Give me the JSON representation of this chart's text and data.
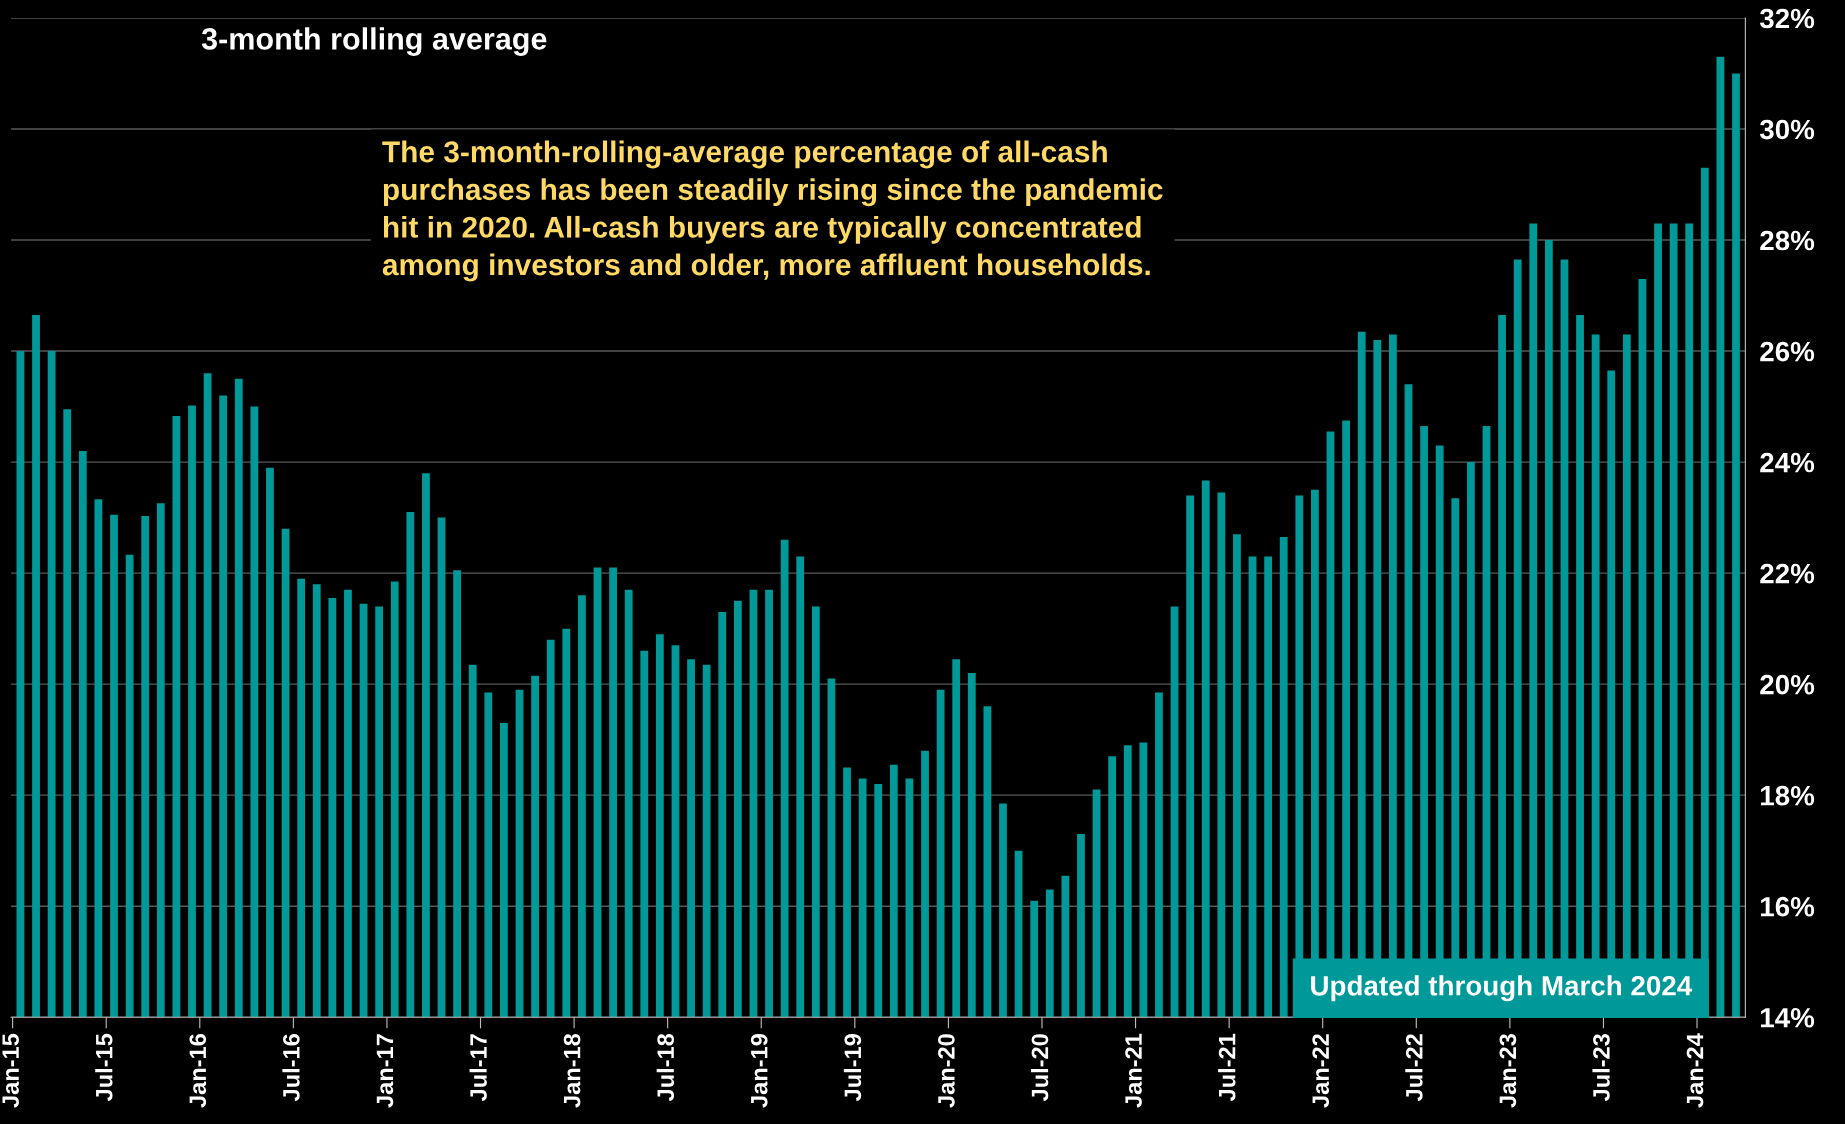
{
  "chart_data": {
    "type": "bar",
    "title": "3-month rolling average",
    "categories": [
      "Jan-15",
      null,
      null,
      null,
      null,
      null,
      "Jul-15",
      null,
      null,
      null,
      null,
      null,
      "Jan-16",
      null,
      null,
      null,
      null,
      null,
      "Jul-16",
      null,
      null,
      null,
      null,
      null,
      "Jan-17",
      null,
      null,
      null,
      null,
      null,
      "Jul-17",
      null,
      null,
      null,
      null,
      null,
      "Jan-18",
      null,
      null,
      null,
      null,
      null,
      "Jul-18",
      null,
      null,
      null,
      null,
      null,
      "Jan-19",
      null,
      null,
      null,
      null,
      null,
      "Jul-19",
      null,
      null,
      null,
      null,
      null,
      "Jan-20",
      null,
      null,
      null,
      null,
      null,
      "Jul-20",
      null,
      null,
      null,
      null,
      null,
      "Jan-21",
      null,
      null,
      null,
      null,
      null,
      "Jul-21",
      null,
      null,
      null,
      null,
      null,
      "Jan-22",
      null,
      null,
      null,
      null,
      null,
      "Jul-22",
      null,
      null,
      null,
      null,
      null,
      "Jan-23",
      null,
      null,
      null,
      null,
      null,
      "Jul-23",
      null,
      null,
      null,
      null,
      null,
      "Jan-24",
      null,
      null
    ],
    "values": [
      26.0,
      26.65,
      26.0,
      24.95,
      24.2,
      23.33,
      23.05,
      22.33,
      23.03,
      23.26,
      24.83,
      25.02,
      25.6,
      25.2,
      25.5,
      25.0,
      23.9,
      22.8,
      21.9,
      21.8,
      21.55,
      21.7,
      21.45,
      21.4,
      21.85,
      23.1,
      23.8,
      23.0,
      22.05,
      20.35,
      19.85,
      19.3,
      19.9,
      20.15,
      20.8,
      21.0,
      21.6,
      22.1,
      22.1,
      21.7,
      20.6,
      20.9,
      20.7,
      20.45,
      20.35,
      21.3,
      21.5,
      21.7,
      21.7,
      22.6,
      22.3,
      21.4,
      20.1,
      18.5,
      18.3,
      18.2,
      18.55,
      18.3,
      18.8,
      19.9,
      20.45,
      20.2,
      19.6,
      17.85,
      17.0,
      16.1,
      16.3,
      16.55,
      17.3,
      18.1,
      18.7,
      18.9,
      18.95,
      19.85,
      21.4,
      23.4,
      23.67,
      23.45,
      22.7,
      22.3,
      22.3,
      22.65,
      23.4,
      23.5,
      24.55,
      24.75,
      26.35,
      26.2,
      26.3,
      25.4,
      24.65,
      24.3,
      23.35,
      24.0,
      24.65,
      26.65,
      27.65,
      28.3,
      28.0,
      27.65,
      26.65,
      26.3,
      25.65,
      26.3,
      27.3,
      28.3,
      28.3,
      28.3,
      29.3,
      31.3,
      31.0
    ],
    "color": "#009999",
    "ylim": [
      14,
      32
    ],
    "yticks": [
      {
        "value": 14,
        "label": "14%"
      },
      {
        "value": 16,
        "label": "16%"
      },
      {
        "value": 18,
        "label": "18%"
      },
      {
        "value": 20,
        "label": "20%"
      },
      {
        "value": 22,
        "label": "22%"
      },
      {
        "value": 24,
        "label": "24%"
      },
      {
        "value": 26,
        "label": "26%"
      },
      {
        "value": 28,
        "label": "28%"
      },
      {
        "value": 30,
        "label": "30%"
      },
      {
        "value": 32,
        "label": "32%"
      }
    ],
    "grid": "y",
    "legend": false,
    "annotations": [
      "The 3-month-rolling-average percentage of all-cash\npurchases has been steadily rising since the pandemic\nhit in 2020. All-cash buyers are typically concentrated\namong investors and older, more affluent households.",
      "Updated through March 2024"
    ]
  }
}
